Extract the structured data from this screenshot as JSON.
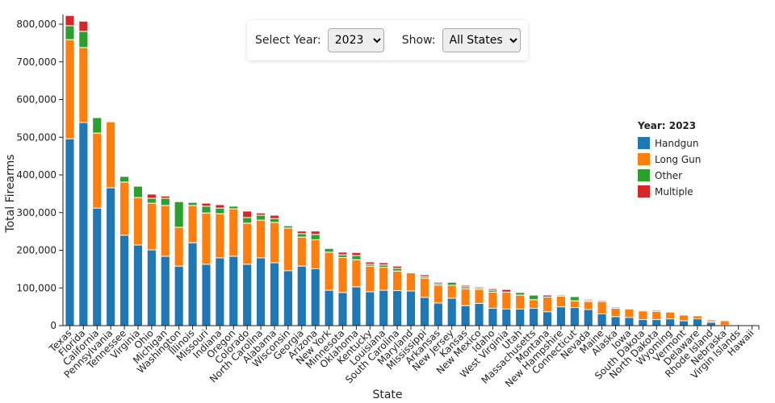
{
  "controls": {
    "year_label": "Select Year:",
    "year_value": "2023",
    "show_label": "Show:",
    "show_value": "All States"
  },
  "chart_data": {
    "type": "bar",
    "stacked": true,
    "title": "",
    "xlabel": "State",
    "ylabel": "Total Firearms",
    "ylim": [
      0,
      800000
    ],
    "yticks": [
      "0",
      "100,000",
      "200,000",
      "300,000",
      "400,000",
      "500,000",
      "600,000",
      "700,000",
      "800,000"
    ],
    "legend_title": "Year: 2023",
    "legend_position": "right",
    "colors": {
      "Handgun": "#1f77b4",
      "Long Gun": "#ff7f0e",
      "Other": "#2ca02c",
      "Multiple": "#d62728"
    },
    "categories": [
      "Texas",
      "Florida",
      "California",
      "Pennsylvania",
      "Tennessee",
      "Virginia",
      "Ohio",
      "Michigan",
      "Washington",
      "Illinois",
      "Missouri",
      "Indiana",
      "Oregon",
      "Colorado",
      "North Carolina",
      "Alabama",
      "Wisconsin",
      "Georgia",
      "Arizona",
      "New York",
      "Minnesota",
      "Oklahoma",
      "Kentucky",
      "Louisiana",
      "South Carolina",
      "Maryland",
      "Mississippi",
      "Arkansas",
      "New Jersey",
      "Kansas",
      "New Mexico",
      "Idaho",
      "West Virginia",
      "Utah",
      "Massachusetts",
      "Montana",
      "New Hampshire",
      "Connecticut",
      "Nevada",
      "Maine",
      "Alaska",
      "Iowa",
      "South Dakota",
      "North Dakota",
      "Wyoming",
      "Vermont",
      "Delaware",
      "Rhode Island",
      "Nebraska",
      "Virgin Islands",
      "Hawaii"
    ],
    "series": [
      {
        "name": "Handgun",
        "values": [
          496000,
          539000,
          312000,
          366000,
          240000,
          214000,
          201000,
          184000,
          158000,
          220000,
          163000,
          180000,
          184000,
          163000,
          180000,
          167000,
          146000,
          158000,
          151000,
          94000,
          88000,
          103000,
          90000,
          94000,
          93000,
          92000,
          75000,
          60000,
          73000,
          53000,
          59000,
          46000,
          44000,
          44000,
          46000,
          37000,
          50000,
          48000,
          43000,
          31000,
          24000,
          22000,
          16000,
          16000,
          18000,
          13000,
          18000,
          9000,
          1000,
          1000,
          0
        ]
      },
      {
        "name": "Long Gun",
        "values": [
          263000,
          199000,
          199000,
          175000,
          141000,
          126000,
          124000,
          135000,
          103000,
          99000,
          136000,
          117000,
          126000,
          109000,
          100000,
          107000,
          113000,
          77000,
          77000,
          101000,
          93000,
          72000,
          68000,
          61000,
          52000,
          48000,
          51000,
          47000,
          34000,
          45000,
          37000,
          43000,
          45000,
          37000,
          23000,
          39000,
          28000,
          18000,
          21000,
          33000,
          22000,
          22000,
          23000,
          22000,
          18000,
          15000,
          8000,
          4000,
          12000,
          0,
          0
        ]
      },
      {
        "name": "Other",
        "values": [
          37000,
          43000,
          41000,
          0,
          15000,
          30000,
          13000,
          19000,
          68000,
          8000,
          18000,
          15000,
          7000,
          15000,
          13000,
          10000,
          6000,
          9000,
          14000,
          10000,
          7000,
          11000,
          5000,
          6000,
          7000,
          0,
          4000,
          4000,
          8000,
          5000,
          4000,
          5000,
          0,
          7000,
          12000,
          0,
          3000,
          11000,
          3000,
          3000,
          3000,
          0,
          0,
          0,
          0,
          0,
          0,
          0,
          0,
          0,
          0
        ]
      },
      {
        "name": "Multiple",
        "values": [
          27000,
          27000,
          0,
          0,
          0,
          0,
          11000,
          6000,
          0,
          0,
          8000,
          9000,
          0,
          17000,
          6000,
          9000,
          0,
          7000,
          9000,
          2000,
          7000,
          8000,
          6000,
          6000,
          6000,
          0,
          5000,
          4000,
          0,
          4000,
          3000,
          4000,
          7000,
          0,
          0,
          5000,
          0,
          0,
          3000,
          0,
          0,
          0,
          0,
          3000,
          0,
          0,
          0,
          3000,
          0,
          0,
          0
        ]
      }
    ]
  }
}
